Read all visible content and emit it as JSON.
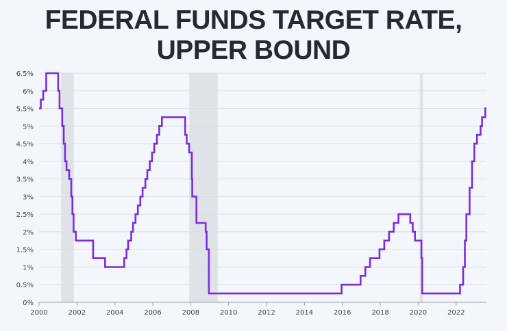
{
  "title_line1": "FEDERAL FUNDS TARGET RATE,",
  "title_line2": "UPPER BOUND",
  "colors": {
    "line": "#7b2be4",
    "recession": "#dfe2e6",
    "grid": "#dcdfe3",
    "background": "#f3f6fa"
  },
  "chart_data": {
    "type": "line",
    "title": "FEDERAL FUNDS TARGET RATE, UPPER BOUND",
    "xlabel": "",
    "ylabel": "",
    "xlim": [
      2000,
      2023.6
    ],
    "ylim": [
      0,
      6.5
    ],
    "grid": true,
    "x_ticks": [
      "2000",
      "2002",
      "2004",
      "2006",
      "2008",
      "2010",
      "2012",
      "2014",
      "2016",
      "2018",
      "2020",
      "2022"
    ],
    "y_ticks": [
      "0%",
      "0.5%",
      "1%",
      "1.5%",
      "2%",
      "2.5%",
      "3%",
      "3.5%",
      "4%",
      "4.5%",
      "5%",
      "5.5%",
      "6%",
      "6.5%"
    ],
    "recessions": [
      [
        2001.17,
        2001.83
      ],
      [
        2007.92,
        2009.42
      ],
      [
        2020.08,
        2020.25
      ]
    ],
    "series": [
      {
        "step": true,
        "x": [
          2000.0,
          2000.09,
          2000.22,
          2000.38,
          2001.01,
          2001.08,
          2001.22,
          2001.3,
          2001.37,
          2001.45,
          2001.59,
          2001.7,
          2001.76,
          2001.82,
          2001.86,
          2001.94,
          2002.85,
          2003.48,
          2004.49,
          2004.61,
          2004.7,
          2004.86,
          2004.96,
          2005.09,
          2005.21,
          2005.34,
          2005.46,
          2005.61,
          2005.71,
          2005.84,
          2005.96,
          2006.08,
          2006.22,
          2006.34,
          2006.48,
          2007.71,
          2007.79,
          2007.92,
          2008.06,
          2008.08,
          2008.16,
          2008.3,
          2008.79,
          2008.84,
          2008.96,
          2015.96,
          2016.96,
          2017.21,
          2017.46,
          2017.96,
          2018.21,
          2018.46,
          2018.71,
          2018.96,
          2019.58,
          2019.71,
          2019.83,
          2020.17,
          2020.21,
          2022.21,
          2022.37,
          2022.46,
          2022.54,
          2022.71,
          2022.84,
          2022.96,
          2023.1,
          2023.29,
          2023.37,
          2023.54,
          2023.6
        ],
        "values": [
          5.5,
          5.75,
          6.0,
          6.5,
          6.0,
          5.5,
          5.0,
          4.5,
          4.0,
          3.75,
          3.5,
          3.0,
          2.5,
          2.0,
          2.0,
          1.75,
          1.25,
          1.0,
          1.25,
          1.5,
          1.75,
          2.0,
          2.25,
          2.5,
          2.75,
          3.0,
          3.25,
          3.5,
          3.75,
          4.0,
          4.25,
          4.5,
          4.75,
          5.0,
          5.25,
          4.75,
          4.5,
          4.25,
          3.5,
          3.0,
          3.0,
          2.25,
          2.0,
          1.5,
          0.25,
          0.5,
          0.75,
          1.0,
          1.25,
          1.5,
          1.75,
          2.0,
          2.25,
          2.5,
          2.25,
          2.0,
          1.75,
          1.25,
          0.25,
          0.5,
          1.0,
          1.75,
          2.5,
          3.25,
          4.0,
          4.5,
          4.75,
          5.0,
          5.25,
          5.5,
          5.5
        ]
      }
    ]
  }
}
